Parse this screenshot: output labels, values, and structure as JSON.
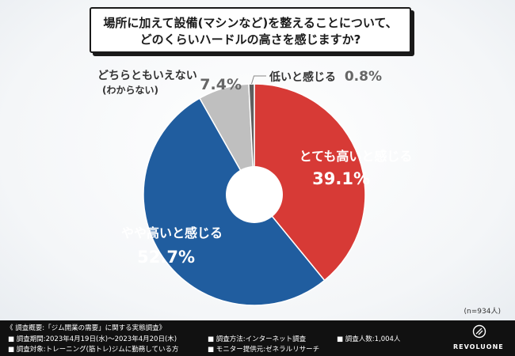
{
  "title": {
    "line1": "場所に加えて設備(マシンなど)を整えることについて、",
    "line2": "どのくらいハードルの高さを感じますか?"
  },
  "chart_data": {
    "type": "pie",
    "donut": true,
    "slices": [
      {
        "label": "とても高いと感じる",
        "value": 39.1,
        "value_text": "39.1%",
        "color": "#d73a36"
      },
      {
        "label": "やや高いと感じる",
        "value": 52.7,
        "value_text": "52.7%",
        "color": "#205d9f"
      },
      {
        "label": "どちらともいえない",
        "sublabel": "(わからない)",
        "value": 7.4,
        "value_text": "7.4%",
        "color": "#bfbfbf"
      },
      {
        "label": "低いと感じる",
        "value": 0.8,
        "value_text": "0.8%",
        "color": "#5f5f5f"
      }
    ]
  },
  "sample_note": "(n=934人)",
  "footer": {
    "heading": "《 調査概要:「ジム開業の需要」に関する実態調査》",
    "period": "■ 調査期間:2023年4月19日(水)〜2023年4月20日(木)",
    "method": "■ 調査方法:インターネット調査",
    "count": "■ 調査人数:1,004人",
    "target": "■ 調査対象:トレーニング(筋トレ)ジムに勤務している方",
    "provider": "■ モニター提供元:ゼネラルリサーチ",
    "brand": "REVOLUONE"
  }
}
